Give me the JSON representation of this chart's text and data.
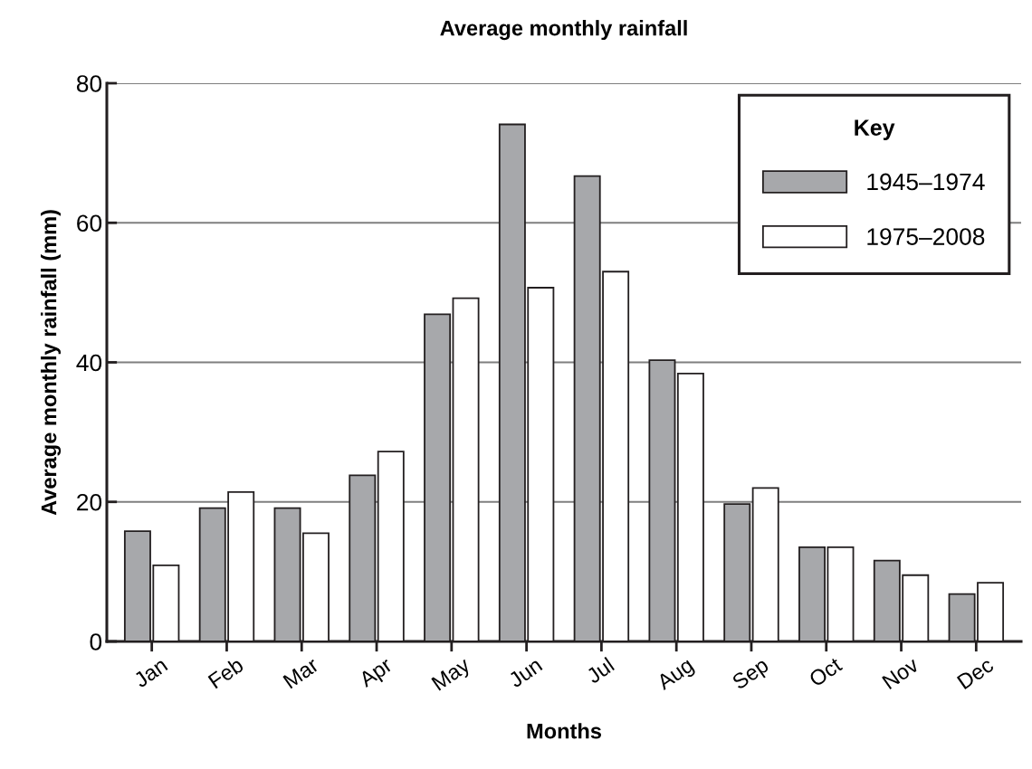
{
  "chart_data": {
    "type": "bar",
    "title": "Average monthly rainfall",
    "xlabel": "Months",
    "ylabel": "Average monthly rainfall (mm)",
    "legend_title": "Key",
    "categories": [
      "Jan",
      "Feb",
      "Mar",
      "Apr",
      "May",
      "Jun",
      "Jul",
      "Aug",
      "Sep",
      "Oct",
      "Nov",
      "Dec"
    ],
    "series": [
      {
        "name": "1945–1974",
        "color": "#a7a8ab",
        "values": [
          15.8,
          19.1,
          19.1,
          23.8,
          46.9,
          74.1,
          66.7,
          40.3,
          19.7,
          13.5,
          11.6,
          6.8
        ]
      },
      {
        "name": "1975–2008",
        "color": "#ffffff",
        "values": [
          10.9,
          21.4,
          15.5,
          27.2,
          49.2,
          50.7,
          53.0,
          38.4,
          22.0,
          13.5,
          9.5,
          8.4
        ]
      }
    ],
    "ylim": [
      0,
      80
    ],
    "yticks": [
      0,
      20,
      40,
      60,
      80
    ],
    "grid": "y",
    "legend": "top right"
  }
}
